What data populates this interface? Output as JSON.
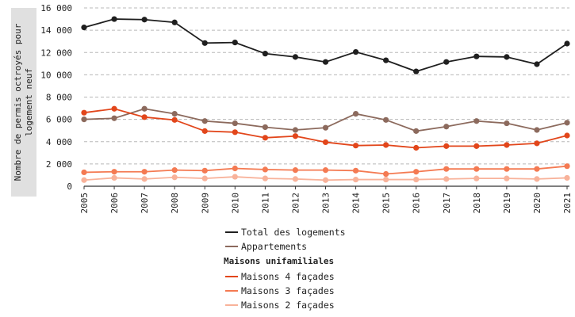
{
  "chart_data": {
    "type": "line",
    "ylabel": "Nombre de permis octroyés pour logement neuf",
    "xlabel": "",
    "ylim": [
      0,
      16000
    ],
    "yticks": [
      0,
      2000,
      4000,
      6000,
      8000,
      10000,
      12000,
      14000,
      16000
    ],
    "ytick_labels": [
      "0",
      "2 000",
      "4 000",
      "6 000",
      "8 000",
      "10 000",
      "12 000",
      "14 000",
      "16 000"
    ],
    "grid": "horizontal dashed",
    "legend_position": "bottom-center",
    "categories": [
      "2005",
      "2006",
      "2007",
      "2008",
      "2009",
      "2010",
      "2011",
      "2012",
      "2013",
      "2014",
      "2015",
      "2016",
      "2017",
      "2018",
      "2019",
      "2020",
      "2021"
    ],
    "series": [
      {
        "name": "Total des logements",
        "color": "#1f1f1f",
        "values": [
          14250,
          15000,
          14950,
          14700,
          12850,
          12900,
          11900,
          11600,
          11150,
          12050,
          11300,
          10300,
          11150,
          11650,
          11600,
          10950,
          12800
        ]
      },
      {
        "name": "Appartements",
        "color": "#8c6a5d",
        "values": [
          6000,
          6100,
          6950,
          6500,
          5850,
          5650,
          5300,
          5050,
          5250,
          6500,
          5950,
          4950,
          5350,
          5850,
          5650,
          5050,
          5700
        ]
      },
      {
        "name": "Maisons 4 façades",
        "color": "#e2461b",
        "values": [
          6600,
          6950,
          6200,
          5950,
          4950,
          4850,
          4350,
          4500,
          3950,
          3650,
          3700,
          3450,
          3600,
          3600,
          3700,
          3850,
          4550
        ]
      },
      {
        "name": "Maisons 3 façades",
        "color": "#f47a52",
        "values": [
          1250,
          1300,
          1300,
          1450,
          1400,
          1600,
          1500,
          1450,
          1450,
          1400,
          1100,
          1300,
          1550,
          1550,
          1550,
          1550,
          1800
        ]
      },
      {
        "name": "Maisons 2 façades",
        "color": "#f8b29a",
        "values": [
          550,
          750,
          650,
          800,
          700,
          850,
          700,
          650,
          550,
          600,
          600,
          600,
          650,
          700,
          700,
          650,
          750
        ]
      }
    ],
    "legend": {
      "group_heading": "Maisons unifamiliales"
    }
  }
}
